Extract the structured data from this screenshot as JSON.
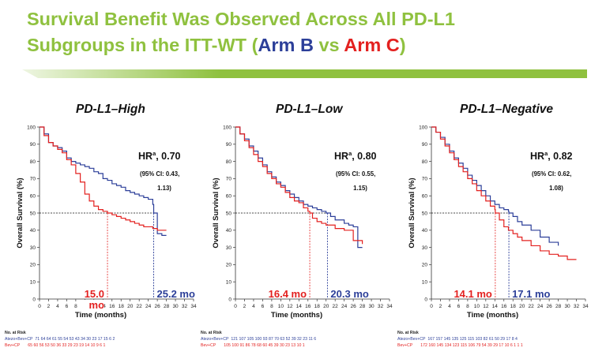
{
  "title": {
    "line1": "Survival Benefit Was Observed Across All PD-L1",
    "line2_prefix": "Subgroups in the ITT-WT (",
    "arm_b": "Arm B",
    "vs": " vs ",
    "arm_c": "Arm C",
    "suffix": ")"
  },
  "colors": {
    "title_green": "#8fc13f",
    "arm_b": "#2c3f99",
    "arm_c": "#e3201f",
    "bar_green": "#8fc13f"
  },
  "chart_data": [
    {
      "type": "line",
      "title": "PD-L1–High",
      "xlabel": "Time (months)",
      "ylabel": "Overall Survival (%)",
      "xlim": [
        0,
        34
      ],
      "ylim": [
        0,
        100
      ],
      "xticks": [
        0,
        2,
        4,
        6,
        8,
        10,
        12,
        14,
        16,
        18,
        20,
        22,
        24,
        26,
        28,
        30,
        32,
        34
      ],
      "yticks": [
        0,
        10,
        20,
        30,
        40,
        50,
        60,
        70,
        80,
        90,
        100
      ],
      "hr_label": "HR",
      "hr_superscript": "a",
      "hr_value": ", 0.70",
      "ci_line1": "(95% CI: 0.43,",
      "ci_line2": "1.13)",
      "median_b_label": "25.2 mo",
      "median_c_label_line1": "15.0",
      "median_c_label_line2": "mo",
      "median_b": 25.2,
      "median_c": 15.0,
      "series": [
        {
          "color": "#2c3f99",
          "x": [
            0,
            1,
            2,
            3,
            4,
            5,
            6,
            7,
            8,
            9,
            10,
            11,
            12,
            13,
            14,
            15,
            16,
            17,
            18,
            19,
            20,
            21,
            22,
            23,
            24,
            25,
            25.2,
            26,
            27,
            28
          ],
          "y": [
            100,
            96,
            91,
            89,
            88,
            86,
            82,
            80,
            79,
            78,
            77,
            76,
            74,
            73,
            70,
            69,
            67,
            66,
            65,
            63,
            62,
            61,
            60,
            59,
            58,
            55,
            50,
            38,
            37,
            37
          ]
        },
        {
          "color": "#e3201f",
          "x": [
            0,
            1,
            2,
            3,
            4,
            5,
            6,
            7,
            8,
            9,
            10,
            11,
            12,
            13,
            14,
            15,
            16,
            17,
            18,
            19,
            20,
            21,
            22,
            23,
            24,
            25,
            26,
            27,
            28
          ],
          "y": [
            100,
            95,
            91,
            89,
            87,
            85,
            81,
            78,
            73,
            68,
            61,
            57,
            54,
            52,
            51,
            50,
            49,
            48,
            47,
            46,
            45,
            44,
            43,
            42,
            42,
            41,
            40,
            40,
            40
          ]
        }
      ],
      "risk": {
        "header": "No. at Risk",
        "arm_b_label": "Atezo+Bev+CP",
        "arm_c_label": "Bev+CP",
        "arm_b_values": "71  64  64  61  55  54  53  43  34  30  23  17  15   6   2",
        "arm_c_values": "65  60  56  53  50  36  33  29  23  19  14  10   9   6   1"
      }
    },
    {
      "type": "line",
      "title": "PD-L1–Low",
      "xlabel": "Time (months)",
      "ylabel": "Overall Survival (%)",
      "xlim": [
        0,
        34
      ],
      "ylim": [
        0,
        100
      ],
      "xticks": [
        0,
        2,
        4,
        6,
        8,
        10,
        12,
        14,
        16,
        18,
        20,
        22,
        24,
        26,
        28,
        30,
        32,
        34
      ],
      "yticks": [
        0,
        10,
        20,
        30,
        40,
        50,
        60,
        70,
        80,
        90,
        100
      ],
      "hr_label": "HR",
      "hr_superscript": "a",
      "hr_value": ", 0.80",
      "ci_line1": "(95% CI: 0.55,",
      "ci_line2": "1.15)",
      "median_b_label": "20.3 mo",
      "median_c_label_line1": "16.4 mo",
      "median_c_label_line2": "",
      "median_b": 20.3,
      "median_c": 16.4,
      "series": [
        {
          "color": "#2c3f99",
          "x": [
            0,
            1,
            2,
            3,
            4,
            5,
            6,
            7,
            8,
            9,
            10,
            11,
            12,
            13,
            14,
            15,
            16,
            17,
            18,
            19,
            20,
            20.3,
            21,
            22,
            24,
            25,
            26,
            27,
            28
          ],
          "y": [
            100,
            96,
            93,
            89,
            86,
            82,
            78,
            74,
            71,
            68,
            66,
            63,
            61,
            59,
            57,
            55,
            54,
            53,
            52,
            51,
            50,
            50,
            48,
            46,
            44,
            43,
            42,
            30,
            30
          ]
        },
        {
          "color": "#e3201f",
          "x": [
            0,
            1,
            2,
            3,
            4,
            5,
            6,
            7,
            8,
            9,
            10,
            11,
            12,
            13,
            14,
            15,
            16,
            16.4,
            17,
            18,
            19,
            20,
            22,
            24,
            26,
            28
          ],
          "y": [
            100,
            96,
            92,
            88,
            84,
            80,
            77,
            73,
            70,
            67,
            65,
            62,
            59,
            57,
            56,
            53,
            51,
            50,
            47,
            45,
            44,
            43,
            41,
            40,
            34,
            32
          ]
        }
      ],
      "risk": {
        "header": "No. at Risk",
        "arm_b_label": "Atezo+Bev+CP",
        "arm_c_label": "Bev+CP",
        "arm_b_values": "121 107 105 100  93  87  70  63  52  39  32  23  11   6",
        "arm_c_values": "105 100  91  86  78  68  60  45  39  30  23  13  10   1"
      }
    },
    {
      "type": "line",
      "title": "PD-L1–Negative",
      "xlabel": "Time (months)",
      "ylabel": "Overall Survival (%)",
      "xlim": [
        0,
        34
      ],
      "ylim": [
        0,
        100
      ],
      "xticks": [
        0,
        2,
        4,
        6,
        8,
        10,
        12,
        14,
        16,
        18,
        20,
        22,
        24,
        26,
        28,
        30,
        32,
        34
      ],
      "yticks": [
        0,
        10,
        20,
        30,
        40,
        50,
        60,
        70,
        80,
        90,
        100
      ],
      "hr_label": "HR",
      "hr_superscript": "a",
      "hr_value": ", 0.82",
      "ci_line1": "(95% CI: 0.62,",
      "ci_line2": "1.08)",
      "median_b_label": "17.1 mo",
      "median_c_label_line1": "14.1 mo",
      "median_c_label_line2": "",
      "median_b": 17.1,
      "median_c": 14.1,
      "series": [
        {
          "color": "#2c3f99",
          "x": [
            0,
            1,
            2,
            3,
            4,
            5,
            6,
            7,
            8,
            9,
            10,
            11,
            12,
            13,
            14,
            15,
            16,
            17,
            17.1,
            18,
            19,
            20,
            22,
            24,
            26,
            28
          ],
          "y": [
            100,
            97,
            94,
            90,
            86,
            82,
            79,
            76,
            72,
            69,
            66,
            63,
            60,
            57,
            55,
            53,
            52,
            51,
            50,
            48,
            45,
            43,
            40,
            36,
            33,
            31
          ]
        },
        {
          "color": "#e3201f",
          "x": [
            0,
            1,
            2,
            3,
            4,
            5,
            6,
            7,
            8,
            9,
            10,
            11,
            12,
            13,
            14,
            14.1,
            15,
            16,
            17,
            18,
            19,
            20,
            22,
            24,
            26,
            28,
            30,
            32
          ],
          "y": [
            100,
            97,
            93,
            89,
            85,
            81,
            77,
            74,
            70,
            67,
            63,
            60,
            57,
            54,
            52,
            50,
            46,
            42,
            40,
            38,
            36,
            34,
            31,
            28,
            26,
            25,
            23,
            23
          ]
        }
      ],
      "risk": {
        "header": "No. at Risk",
        "arm_b_label": "Atezo+Bev+CP",
        "arm_c_label": "Bev+CP",
        "arm_b_values": "167 157 145 135 125 115 103  82  61  50  29  17   8   4",
        "arm_c_values": "172 160 145 134 123 115 106  79  54  39  29  17  10   6   1   1   1"
      }
    }
  ]
}
